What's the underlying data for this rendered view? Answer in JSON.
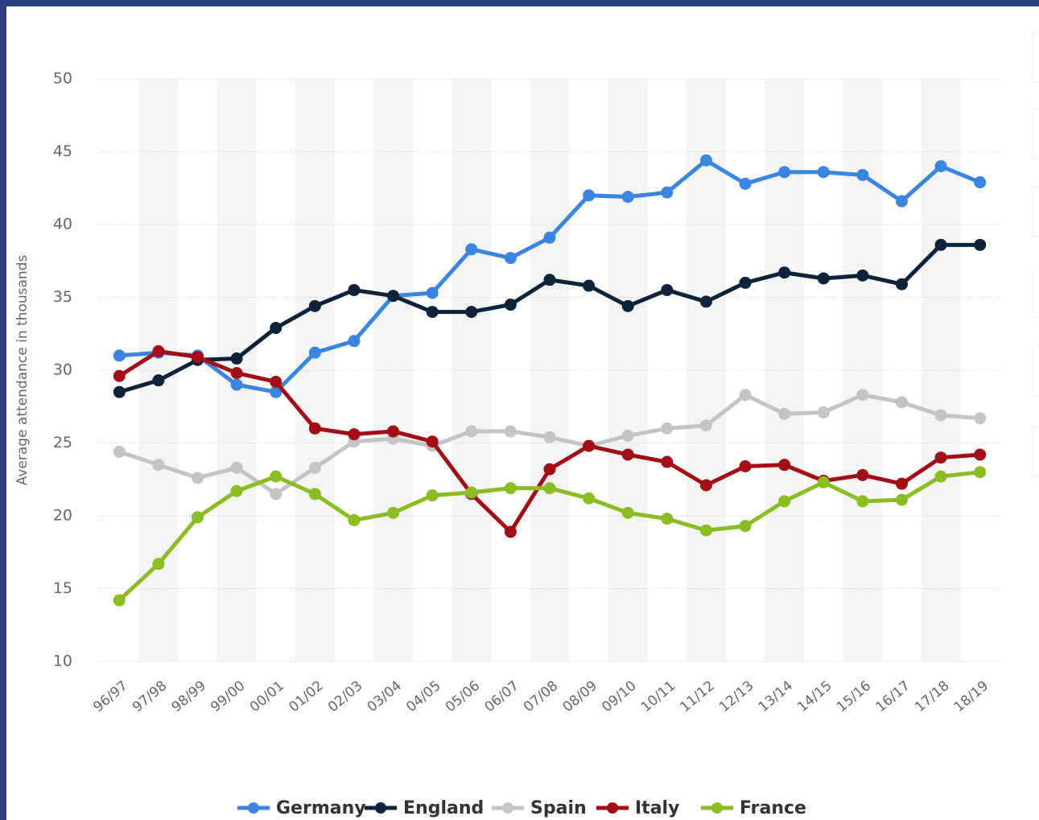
{
  "chart_data": {
    "type": "line",
    "y_label": "Average attendance in thousands",
    "categories": [
      "96/97",
      "97/98",
      "98/99",
      "99/00",
      "00/01",
      "01/02",
      "02/03",
      "03/04",
      "04/05",
      "05/06",
      "06/07",
      "07/08",
      "08/09",
      "09/10",
      "10/11",
      "11/12",
      "12/13",
      "13/14",
      "14/15",
      "15/16",
      "16/17",
      "17/18",
      "18/19"
    ],
    "series": [
      {
        "name": "Germany",
        "color": "#3a85e0",
        "values": [
          31.0,
          31.2,
          31.0,
          29.0,
          28.5,
          31.2,
          32.0,
          35.1,
          35.3,
          38.3,
          37.7,
          39.1,
          42.0,
          41.9,
          42.2,
          44.4,
          42.8,
          43.6,
          43.6,
          43.4,
          41.6,
          44.0,
          42.9
        ]
      },
      {
        "name": "England",
        "color": "#0d233a",
        "values": [
          28.5,
          29.3,
          30.7,
          30.8,
          32.9,
          34.4,
          35.5,
          35.1,
          34.0,
          34.0,
          34.5,
          36.2,
          35.8,
          34.4,
          35.5,
          34.7,
          36.0,
          36.7,
          36.3,
          36.5,
          35.9,
          38.6,
          38.6
        ]
      },
      {
        "name": "Spain",
        "color": "#c4c4c4",
        "values": [
          24.4,
          23.5,
          22.6,
          23.3,
          21.5,
          23.3,
          25.1,
          25.3,
          24.8,
          25.8,
          25.8,
          25.4,
          24.8,
          25.5,
          26.0,
          26.2,
          28.3,
          27.0,
          27.1,
          28.3,
          27.8,
          26.9,
          26.7
        ]
      },
      {
        "name": "Italy",
        "color": "#a30d16",
        "values": [
          29.6,
          31.3,
          30.9,
          29.8,
          29.2,
          26.0,
          25.6,
          25.8,
          25.1,
          21.5,
          18.9,
          23.2,
          24.8,
          24.2,
          23.7,
          22.1,
          23.4,
          23.5,
          22.4,
          22.8,
          22.2,
          24.0,
          24.2
        ]
      },
      {
        "name": "France",
        "color": "#8bbc21",
        "values": [
          14.2,
          16.7,
          19.9,
          21.7,
          22.7,
          21.5,
          19.7,
          20.2,
          21.4,
          21.6,
          21.9,
          21.9,
          21.2,
          20.2,
          19.8,
          19.0,
          19.3,
          21.0,
          22.3,
          21.0,
          21.1,
          22.7,
          23.0
        ]
      }
    ],
    "ylim": [
      10,
      50
    ],
    "yticks": [
      10,
      15,
      20,
      25,
      30,
      35,
      40,
      45,
      50
    ],
    "grid": true
  }
}
